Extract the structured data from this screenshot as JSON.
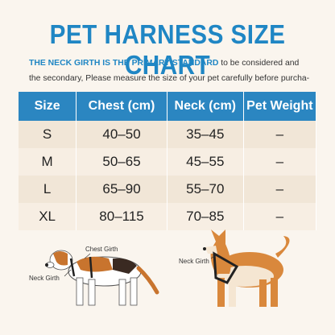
{
  "header": {
    "title": "PET HARNESS SIZE CHART",
    "intro_highlight": "THE NECK GIRTH IS THE PRIMARY STANDARD",
    "intro_rest": " to be considered and the secondary, Please measure the size of your pet carefully before purcha-"
  },
  "table": {
    "columns": [
      "Size",
      "Chest (cm)",
      "Neck (cm)",
      "Pet Weight"
    ],
    "rows": [
      [
        "S",
        "40–50",
        "35–45",
        "–"
      ],
      [
        "M",
        "50–65",
        "45–55",
        "–"
      ],
      [
        "L",
        "65–90",
        "55–70",
        "–"
      ],
      [
        "XL",
        "80–115",
        "70–85",
        "–"
      ]
    ]
  },
  "illustrations": {
    "left_chest": "Chest Girth",
    "left_neck": "Neck Girth",
    "right_neck": "Neck Girth"
  }
}
